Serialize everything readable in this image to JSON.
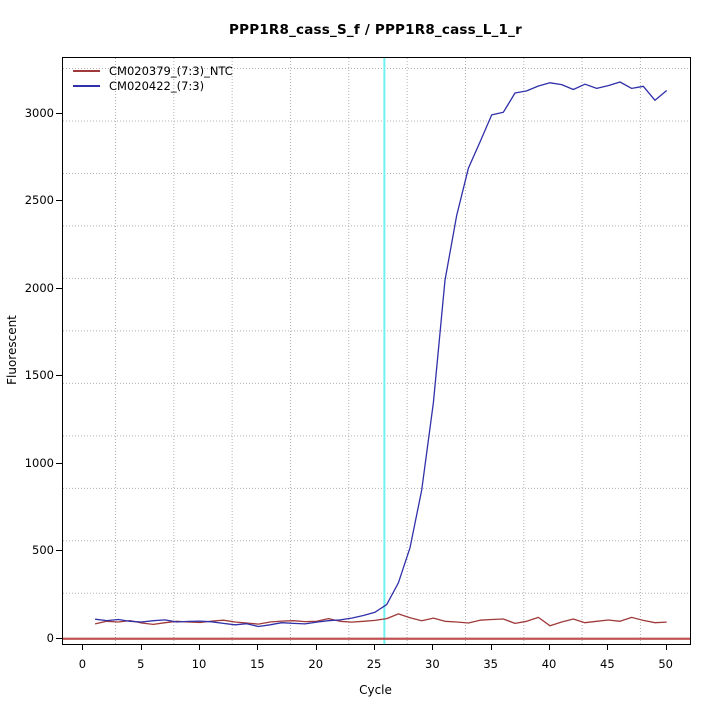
{
  "chart_data": {
    "type": "line",
    "title": "PPP1R8_cass_S_f / PPP1R8_cass_L_1_r",
    "xlabel": "Cycle",
    "ylabel": "Fluorescent",
    "x_ticks": [
      0,
      5,
      10,
      15,
      20,
      25,
      30,
      35,
      40,
      45,
      50
    ],
    "y_ticks": [
      0,
      500,
      1000,
      1500,
      2000,
      2500,
      3000
    ],
    "x_range": [
      -1.75,
      52.0
    ],
    "y_range": [
      -30,
      3320
    ],
    "grid": {
      "style": "dotted",
      "color": "#b0b0b0",
      "x_lines": [
        2.75,
        7.75,
        12.75,
        17.75,
        22.75,
        27.75,
        32.75,
        37.75,
        42.75,
        47.75
      ],
      "y_lines": [
        260,
        560,
        860,
        1160,
        1460,
        1760,
        2060,
        2360,
        2660,
        2960,
        3260
      ]
    },
    "threshold_cycle_line": {
      "axis": "x",
      "value": 25.8,
      "color": "#6ff2f2",
      "width": 2
    },
    "baseline_line": {
      "axis": "y",
      "value": 0,
      "color": "#c05454",
      "width": 2.2
    },
    "x": [
      1,
      2,
      3,
      4,
      5,
      6,
      7,
      8,
      9,
      10,
      11,
      12,
      13,
      14,
      15,
      16,
      17,
      18,
      19,
      20,
      21,
      22,
      23,
      24,
      25,
      26,
      27,
      28,
      29,
      30,
      31,
      32,
      33,
      34,
      35,
      36,
      37,
      38,
      39,
      40,
      41,
      42,
      43,
      44,
      45,
      46,
      47,
      48,
      49,
      50
    ],
    "series": [
      {
        "name": "CM020379_(7:3)_NTC",
        "color": "#a03a3a",
        "values": [
          85,
          100,
          96,
          104,
          90,
          82,
          92,
          100,
          96,
          93,
          101,
          106,
          96,
          90,
          84,
          96,
          101,
          103,
          98,
          100,
          115,
          100,
          95,
          100,
          105,
          115,
          142,
          120,
          103,
          118,
          100,
          96,
          90,
          106,
          110,
          113,
          88,
          100,
          122,
          74,
          96,
          113,
          92,
          100,
          107,
          100,
          122,
          105,
          92,
          95
        ]
      },
      {
        "name": "CM020422_(7:3)",
        "color": "#3030aa",
        "values": [
          112,
          104,
          110,
          100,
          96,
          103,
          108,
          96,
          99,
          101,
          97,
          88,
          80,
          86,
          70,
          80,
          92,
          88,
          85,
          95,
          103,
          108,
          118,
          133,
          152,
          195,
          320,
          520,
          850,
          1350,
          2050,
          2420,
          2690,
          2840,
          2995,
          3010,
          3120,
          3132,
          3160,
          3178,
          3168,
          3140,
          3170,
          3146,
          3162,
          3183,
          3146,
          3158,
          3078,
          3134
        ]
      }
    ],
    "legend": {
      "position": "top-left",
      "entries": [
        {
          "label": "CM020379_(7:3)_NTC",
          "color": "#a03a3a"
        },
        {
          "label": "CM020422_(7:3)",
          "color": "#3030aa"
        }
      ]
    }
  }
}
